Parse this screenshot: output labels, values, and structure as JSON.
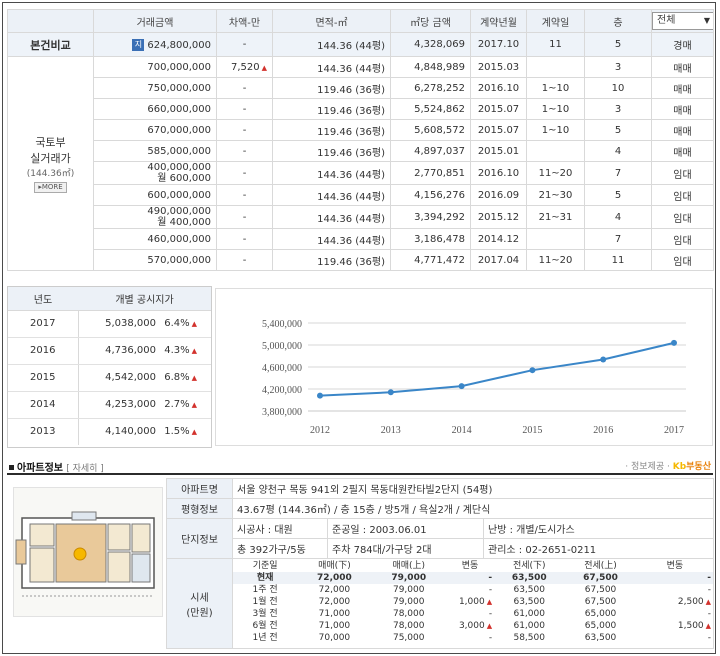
{
  "table": {
    "headers": [
      "거래금액",
      "차액-만",
      "면적-㎡",
      "㎡당 금액",
      "계약년월",
      "계약일",
      "층"
    ],
    "filter": "전체",
    "compare": {
      "label": "본건비교",
      "badge": "지",
      "amount": "624,800,000",
      "diff": "-",
      "area": "144.36 (44평)",
      "per_m2": "4,328,069",
      "ym": "2017.10",
      "day": "11",
      "floor": "5",
      "type": "경매"
    },
    "molit": {
      "label_line1": "국토부",
      "label_line2": "실거래가",
      "label_area": "(144.36㎡)",
      "more": "▸MORE"
    },
    "rows": [
      {
        "amount": "700,000,000",
        "diff": "7,520",
        "diff_up": true,
        "area": "144.36 (44평)",
        "per_m2": "4,848,989",
        "ym": "2015.03",
        "day": "",
        "floor": "3",
        "type": "매매"
      },
      {
        "amount": "750,000,000",
        "diff": "-",
        "area": "119.46 (36평)",
        "per_m2": "6,278,252",
        "ym": "2016.10",
        "day": "1~10",
        "floor": "10",
        "type": "매매"
      },
      {
        "amount": "660,000,000",
        "diff": "-",
        "area": "119.46 (36평)",
        "per_m2": "5,524,862",
        "ym": "2015.07",
        "day": "1~10",
        "floor": "3",
        "type": "매매"
      },
      {
        "amount": "670,000,000",
        "diff": "-",
        "area": "119.46 (36평)",
        "per_m2": "5,608,572",
        "ym": "2015.07",
        "day": "1~10",
        "floor": "5",
        "type": "매매"
      },
      {
        "amount": "585,000,000",
        "diff": "-",
        "area": "119.46 (36평)",
        "per_m2": "4,897,037",
        "ym": "2015.01",
        "day": "",
        "floor": "4",
        "type": "매매"
      },
      {
        "amount": "400,000,000",
        "amount2": "월 600,000",
        "diff": "-",
        "area": "144.36 (44평)",
        "per_m2": "2,770,851",
        "ym": "2016.10",
        "day": "11~20",
        "floor": "7",
        "type": "임대"
      },
      {
        "amount": "600,000,000",
        "diff": "-",
        "area": "144.36 (44평)",
        "per_m2": "4,156,276",
        "ym": "2016.09",
        "day": "21~30",
        "floor": "5",
        "type": "임대"
      },
      {
        "amount": "490,000,000",
        "amount2": "월 400,000",
        "diff": "-",
        "area": "144.36 (44평)",
        "per_m2": "3,394,292",
        "ym": "2015.12",
        "day": "21~31",
        "floor": "4",
        "type": "임대"
      },
      {
        "amount": "460,000,000",
        "diff": "-",
        "area": "144.36 (44평)",
        "per_m2": "3,186,478",
        "ym": "2014.12",
        "day": "",
        "floor": "7",
        "type": "임대"
      },
      {
        "amount": "570,000,000",
        "diff": "-",
        "area": "119.46 (36평)",
        "per_m2": "4,771,472",
        "ym": "2017.04",
        "day": "11~20",
        "floor": "11",
        "type": "임대"
      }
    ]
  },
  "public_price": {
    "headers": [
      "년도",
      "개별 공시지가"
    ],
    "rows": [
      {
        "year": "2017",
        "price": "5,038,000",
        "pct": "6.4%"
      },
      {
        "year": "2016",
        "price": "4,736,000",
        "pct": "4.3%"
      },
      {
        "year": "2015",
        "price": "4,542,000",
        "pct": "6.8%"
      },
      {
        "year": "2014",
        "price": "4,253,000",
        "pct": "2.7%"
      },
      {
        "year": "2013",
        "price": "4,140,000",
        "pct": "1.5%"
      }
    ]
  },
  "chart_data": {
    "type": "line",
    "x": [
      "2012",
      "2013",
      "2014",
      "2015",
      "2016",
      "2017"
    ],
    "series": [
      {
        "values": [
          4080000,
          4140000,
          4253000,
          4542000,
          4736000,
          5038000
        ]
      }
    ],
    "yticks": [
      "5,400,000",
      "5,000,000",
      "4,600,000",
      "4,200,000",
      "3,800,000"
    ],
    "ylim": [
      3800000,
      5400000
    ],
    "grid": true,
    "line_color": "#3a86c8"
  },
  "apt_section": {
    "title": "아파트정보",
    "link": "자세히",
    "source_prefix": "· 정보제공 · ",
    "source_brand": "부동산",
    "source_brand_mark": "Kb"
  },
  "apt_info": {
    "name_label": "아파트명",
    "name": "서울 양천구 목동 941외 2필지 목동대원칸타빌2단지 (54평)",
    "floorplan_label": "평형정보",
    "floorplan": "43.67평 (144.36㎡) / 층 15층 / 방5개 / 욕실2개 / 계단식",
    "complex_label": "단지정보",
    "builder": "시공사 : 대원",
    "completed": "준공일 : 2003.06.01",
    "heating": "난방 : 개별/도시가스",
    "households": "총 392가구/5동",
    "parking": "주차 784대/가구당 2대",
    "office": "관리소 : 02-2651-0211",
    "market_label1": "시세",
    "market_label2": "(만원)",
    "market_headers": [
      "기준일",
      "매매(下)",
      "매매(上)",
      "변동",
      "전세(下)",
      "전세(上)",
      "변동"
    ],
    "market_rows": [
      {
        "date": "현재",
        "s_low": "72,000",
        "s_high": "79,000",
        "s_chg": "-",
        "j_low": "63,500",
        "j_high": "67,500",
        "j_chg": "-"
      },
      {
        "date": "1주 전",
        "s_low": "72,000",
        "s_high": "79,000",
        "s_chg": "-",
        "j_low": "63,500",
        "j_high": "67,500",
        "j_chg": "-"
      },
      {
        "date": "1월 전",
        "s_low": "72,000",
        "s_high": "79,000",
        "s_chg": "1,000",
        "s_up": true,
        "j_low": "63,500",
        "j_high": "67,500",
        "j_chg": "2,500",
        "j_up": true
      },
      {
        "date": "3월 전",
        "s_low": "71,000",
        "s_high": "78,000",
        "s_chg": "-",
        "j_low": "61,000",
        "j_high": "65,000",
        "j_chg": "-"
      },
      {
        "date": "6월 전",
        "s_low": "71,000",
        "s_high": "78,000",
        "s_chg": "3,000",
        "s_up": true,
        "j_low": "61,000",
        "j_high": "65,000",
        "j_chg": "1,500",
        "j_up": true
      },
      {
        "date": "1년 전",
        "s_low": "70,000",
        "s_high": "75,000",
        "s_chg": "-",
        "j_low": "58,500",
        "j_high": "63,500",
        "j_chg": "-"
      }
    ]
  },
  "colors": {
    "header_bg": "#ecf1f7",
    "up_arrow": "#d2322d",
    "line": "#3a86c8",
    "brand": "#e8820c"
  }
}
